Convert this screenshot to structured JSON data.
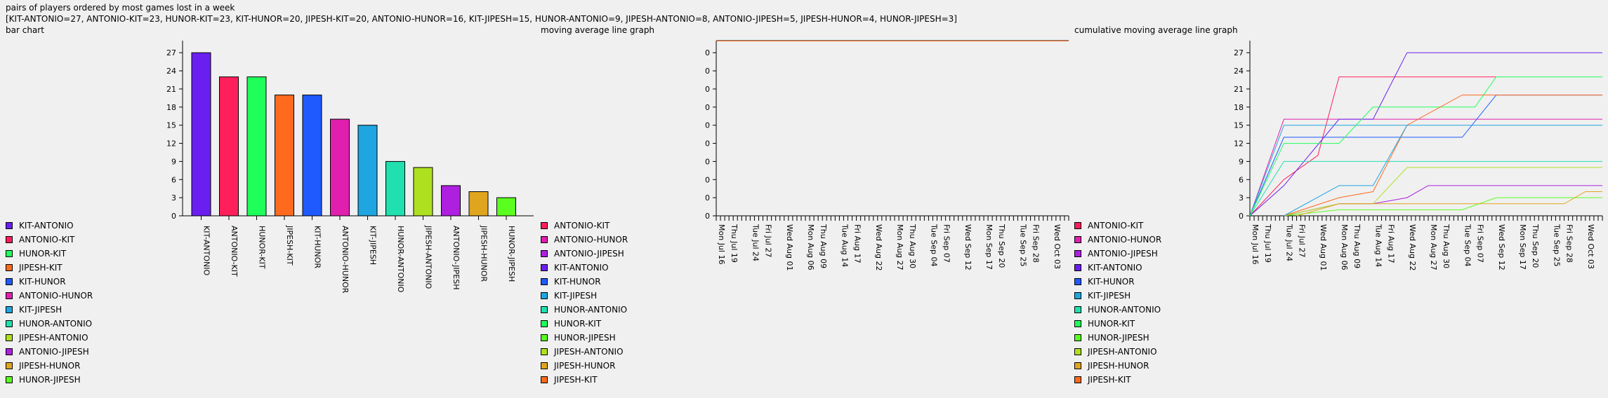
{
  "header": {
    "title": "pairs of players ordered by most games lost in a week",
    "summary": "[KIT-ANTONIO=27, ANTONIO-KIT=23, HUNOR-KIT=23, KIT-HUNOR=20, JIPESH-KIT=20, ANTONIO-HUNOR=16, KIT-JIPESH=15, HUNOR-ANTONIO=9, JIPESH-ANTONIO=8, ANTONIO-JIPESH=5, JIPESH-HUNOR=4, HUNOR-JIPESH=3]"
  },
  "sections": {
    "bar": "bar chart",
    "moving": "moving average line graph",
    "cumulative": "cumulative moving average line graph"
  },
  "colors": {
    "KIT-ANTONIO": "#6a1ff0",
    "ANTONIO-KIT": "#ff1f5a",
    "HUNOR-KIT": "#1fff5a",
    "JIPESH-KIT": "#ff6a1f",
    "KIT-HUNOR": "#1f5aff",
    "ANTONIO-HUNOR": "#e01fae",
    "KIT-JIPESH": "#1fa5e0",
    "HUNOR-ANTONIO": "#1fe0ae",
    "JIPESH-ANTONIO": "#aee01f",
    "ANTONIO-JIPESH": "#ae1fe0",
    "JIPESH-HUNOR": "#e0a51f",
    "HUNOR-JIPESH": "#5aff1f"
  },
  "date_ticks": [
    "Mon Jul 16",
    "Thu Jul 19",
    "Tue Jul 24",
    "Fri Jul 27",
    "Wed Aug 01",
    "Mon Aug 06",
    "Thu Aug 09",
    "Tue Aug 14",
    "Fri Aug 17",
    "Wed Aug 22",
    "Mon Aug 27",
    "Thu Aug 30",
    "Tue Sep 04",
    "Fri Sep 07",
    "Wed Sep 12",
    "Mon Sep 17",
    "Thu Sep 20",
    "Tue Sep 25",
    "Fri Sep 28",
    "Wed Oct 03"
  ],
  "chart_data": [
    {
      "type": "bar",
      "categories": [
        "KIT-ANTONIO",
        "ANTONIO-KIT",
        "HUNOR-KIT",
        "JIPESH-KIT",
        "KIT-HUNOR",
        "ANTONIO-HUNOR",
        "KIT-JIPESH",
        "HUNOR-ANTONIO",
        "JIPESH-ANTONIO",
        "ANTONIO-JIPESH",
        "JIPESH-HUNOR",
        "HUNOR-JIPESH"
      ],
      "values": [
        27,
        23,
        23,
        20,
        20,
        16,
        15,
        9,
        8,
        5,
        4,
        3
      ],
      "yticks": [
        0,
        3,
        6,
        9,
        12,
        15,
        18,
        21,
        24,
        27
      ],
      "ylim": [
        0,
        29
      ],
      "legend": [
        "KIT-ANTONIO",
        "ANTONIO-KIT",
        "HUNOR-KIT",
        "JIPESH-KIT",
        "KIT-HUNOR",
        "ANTONIO-HUNOR",
        "KIT-JIPESH",
        "HUNOR-ANTONIO",
        "JIPESH-ANTONIO",
        "ANTONIO-JIPESH",
        "JIPESH-HUNOR",
        "HUNOR-JIPESH"
      ]
    },
    {
      "type": "line",
      "yticks": [
        "0",
        "0",
        "0",
        "0",
        "0",
        "0",
        "0",
        "0",
        "0",
        "0"
      ],
      "series": [
        {
          "name": "JIPESH-KIT",
          "points": [
            [
              "2018-07-16",
              1
            ],
            [
              "2018-10-07",
              1
            ]
          ]
        }
      ],
      "legend": [
        "ANTONIO-KIT",
        "ANTONIO-HUNOR",
        "ANTONIO-JIPESH",
        "KIT-ANTONIO",
        "KIT-HUNOR",
        "KIT-JIPESH",
        "HUNOR-ANTONIO",
        "HUNOR-KIT",
        "HUNOR-JIPESH",
        "JIPESH-ANTONIO",
        "JIPESH-HUNOR",
        "JIPESH-KIT"
      ]
    },
    {
      "type": "line",
      "yticks": [
        0,
        3,
        6,
        9,
        12,
        15,
        18,
        21,
        24,
        27
      ],
      "ylim": [
        0,
        29
      ],
      "xrange": [
        "2018-07-16",
        "2018-10-07"
      ],
      "series": [
        {
          "name": "ANTONIO-KIT",
          "points": [
            [
              "2018-07-16",
              0
            ],
            [
              "2018-07-24",
              6
            ],
            [
              "2018-08-01",
              10
            ],
            [
              "2018-08-06",
              23
            ],
            [
              "2018-09-12",
              23
            ]
          ]
        },
        {
          "name": "ANTONIO-HUNOR",
          "points": [
            [
              "2018-07-16",
              0
            ],
            [
              "2018-07-24",
              16
            ],
            [
              "2018-10-07",
              16
            ]
          ]
        },
        {
          "name": "ANTONIO-JIPESH",
          "points": [
            [
              "2018-07-24",
              0
            ],
            [
              "2018-08-06",
              2
            ],
            [
              "2018-08-14",
              2
            ],
            [
              "2018-08-22",
              3
            ],
            [
              "2018-08-27",
              5
            ],
            [
              "2018-10-07",
              5
            ]
          ]
        },
        {
          "name": "KIT-ANTONIO",
          "points": [
            [
              "2018-07-16",
              0
            ],
            [
              "2018-07-24",
              5
            ],
            [
              "2018-08-06",
              16
            ],
            [
              "2018-08-14",
              16
            ],
            [
              "2018-08-22",
              27
            ],
            [
              "2018-10-07",
              27
            ]
          ]
        },
        {
          "name": "KIT-HUNOR",
          "points": [
            [
              "2018-07-16",
              0
            ],
            [
              "2018-07-24",
              13
            ],
            [
              "2018-09-04",
              13
            ],
            [
              "2018-09-12",
              20
            ],
            [
              "2018-10-07",
              20
            ]
          ]
        },
        {
          "name": "KIT-JIPESH",
          "points": [
            [
              "2018-07-16",
              0
            ],
            [
              "2018-07-24",
              15
            ],
            [
              "2018-10-07",
              15
            ]
          ]
        },
        {
          "name": "HUNOR-ANTONIO",
          "points": [
            [
              "2018-07-16",
              0
            ],
            [
              "2018-07-24",
              9
            ],
            [
              "2018-10-07",
              9
            ]
          ]
        },
        {
          "name": "HUNOR-KIT",
          "points": [
            [
              "2018-07-16",
              0
            ],
            [
              "2018-07-24",
              12
            ],
            [
              "2018-08-06",
              12
            ],
            [
              "2018-08-14",
              18
            ],
            [
              "2018-09-07",
              18
            ],
            [
              "2018-09-12",
              23
            ],
            [
              "2018-10-07",
              23
            ]
          ]
        },
        {
          "name": "HUNOR-JIPESH",
          "points": [
            [
              "2018-07-24",
              0
            ],
            [
              "2018-08-06",
              1
            ],
            [
              "2018-09-04",
              1
            ],
            [
              "2018-09-12",
              3
            ],
            [
              "2018-10-07",
              3
            ]
          ]
        },
        {
          "name": "JIPESH-ANTONIO",
          "points": [
            [
              "2018-07-24",
              0
            ],
            [
              "2018-08-06",
              2
            ],
            [
              "2018-08-14",
              2
            ],
            [
              "2018-08-22",
              8
            ],
            [
              "2018-10-07",
              8
            ]
          ]
        },
        {
          "name": "JIPESH-HUNOR",
          "points": [
            [
              "2018-07-27",
              0
            ],
            [
              "2018-08-06",
              2
            ],
            [
              "2018-09-28",
              2
            ],
            [
              "2018-10-03",
              4
            ],
            [
              "2018-10-07",
              4
            ]
          ]
        },
        {
          "name": "JIPESH-KIT",
          "points": [
            [
              "2018-07-24",
              0
            ],
            [
              "2018-08-06",
              3
            ],
            [
              "2018-08-14",
              4
            ],
            [
              "2018-08-22",
              15
            ],
            [
              "2018-09-04",
              20
            ],
            [
              "2018-10-07",
              20
            ]
          ]
        },
        {
          "name": "KIT-JIPESH",
          "points": [
            [
              "2018-07-24",
              0
            ],
            [
              "2018-08-06",
              5
            ],
            [
              "2018-08-14",
              5
            ],
            [
              "2018-08-22",
              15
            ]
          ]
        }
      ],
      "legend": [
        "ANTONIO-KIT",
        "ANTONIO-HUNOR",
        "ANTONIO-JIPESH",
        "KIT-ANTONIO",
        "KIT-HUNOR",
        "KIT-JIPESH",
        "HUNOR-ANTONIO",
        "HUNOR-KIT",
        "HUNOR-JIPESH",
        "JIPESH-ANTONIO",
        "JIPESH-HUNOR",
        "JIPESH-KIT"
      ]
    }
  ]
}
